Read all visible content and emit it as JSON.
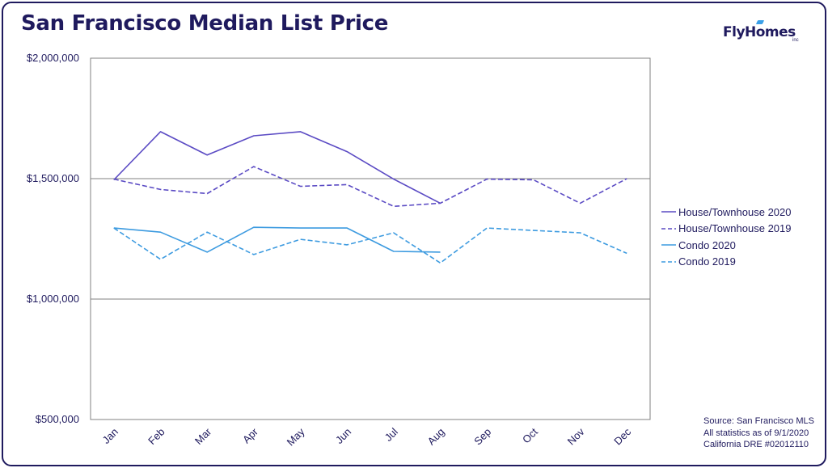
{
  "title": "San Francisco Median List Price",
  "logo": {
    "text": "FlyHomes",
    "sub": "inc"
  },
  "colors": {
    "house": "#5b4bc4",
    "condo": "#3d9be0",
    "axis": "#808080",
    "text": "#1f1a5e"
  },
  "chart_data": {
    "type": "line",
    "title": "San Francisco Median List Price",
    "categories": [
      "Jan",
      "Feb",
      "Mar",
      "Apr",
      "May",
      "Jun",
      "Jul",
      "Aug",
      "Sep",
      "Oct",
      "Nov",
      "Dec"
    ],
    "ylim": [
      500000,
      2000000
    ],
    "yticks": [
      {
        "value": 2000000,
        "label": "$2,000,000"
      },
      {
        "value": 1500000,
        "label": "$1,500,000"
      },
      {
        "value": 1000000,
        "label": "$1,000,000"
      },
      {
        "value": 500000,
        "label": "$500,000"
      }
    ],
    "grid": "horizontal",
    "legend": "right",
    "series": [
      {
        "name": "House/Townhouse 2020",
        "style": "solid",
        "color": "#5b4bc4",
        "values": [
          1495000,
          1695000,
          1598000,
          1678000,
          1695000,
          1612000,
          1498000,
          1398000,
          null,
          null,
          null,
          null
        ]
      },
      {
        "name": "House/Townhouse 2019",
        "style": "dashed",
        "color": "#5b4bc4",
        "values": [
          1498000,
          1455000,
          1438000,
          1550000,
          1468000,
          1475000,
          1385000,
          1398000,
          1498000,
          1495000,
          1398000,
          1500000
        ]
      },
      {
        "name": "Condo 2020",
        "style": "solid",
        "color": "#3d9be0",
        "values": [
          1295000,
          1278000,
          1195000,
          1298000,
          1295000,
          1295000,
          1198000,
          1195000,
          null,
          null,
          null,
          null
        ]
      },
      {
        "name": "Condo 2019",
        "style": "dashed",
        "color": "#3d9be0",
        "values": [
          1295000,
          1165000,
          1278000,
          1185000,
          1248000,
          1225000,
          1275000,
          1150000,
          1295000,
          1285000,
          1275000,
          1190000
        ]
      }
    ]
  },
  "source": {
    "line1": "Source: San Francisco MLS",
    "line2": "All statistics as of 9/1/2020",
    "line3": "California DRE #02012110"
  }
}
